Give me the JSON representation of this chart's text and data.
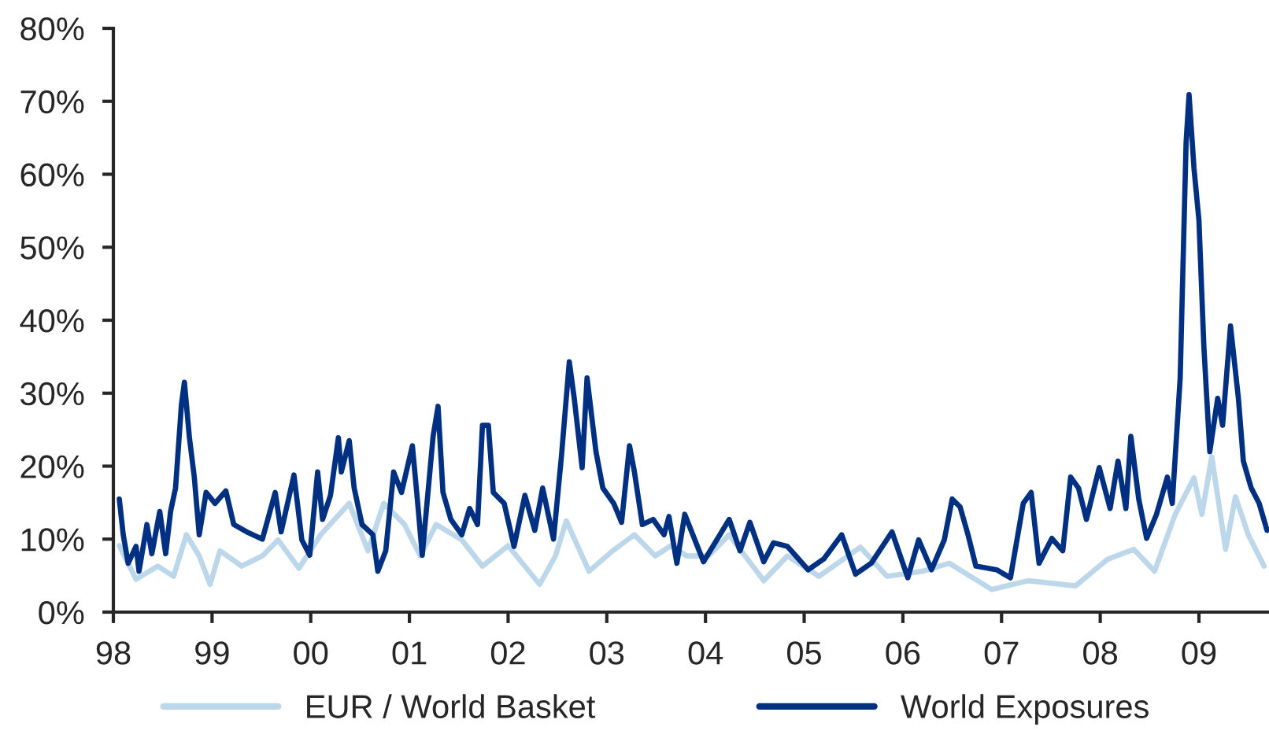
{
  "chart_data": {
    "type": "line",
    "xlim": [
      1998,
      2009.71
    ],
    "xticks": [
      {
        "value": 1998,
        "label": "98"
      },
      {
        "value": 1999,
        "label": "99"
      },
      {
        "value": 2000,
        "label": "00"
      },
      {
        "value": 2001,
        "label": "01"
      },
      {
        "value": 2002,
        "label": "02"
      },
      {
        "value": 2003,
        "label": "03"
      },
      {
        "value": 2004,
        "label": "04"
      },
      {
        "value": 2005,
        "label": "05"
      },
      {
        "value": 2006,
        "label": "06"
      },
      {
        "value": 2007,
        "label": "07"
      },
      {
        "value": 2008,
        "label": "08"
      },
      {
        "value": 2009,
        "label": "09"
      }
    ],
    "ylim": [
      0,
      80
    ],
    "yticks": [
      {
        "value": 0,
        "label": "0%"
      },
      {
        "value": 10,
        "label": "10%"
      },
      {
        "value": 20,
        "label": "20%"
      },
      {
        "value": 30,
        "label": "30%"
      },
      {
        "value": 40,
        "label": "40%"
      },
      {
        "value": 50,
        "label": "50%"
      },
      {
        "value": 60,
        "label": "60%"
      },
      {
        "value": 70,
        "label": "70%"
      },
      {
        "value": 80,
        "label": "80%"
      }
    ],
    "grid": false,
    "legend": "bottom",
    "marker": "none",
    "line_style": "solid",
    "series": [
      {
        "name": "EUR / World Basket",
        "color": "#bcd7ea",
        "x": [
          1998.06,
          1998.23,
          1998.45,
          1998.61,
          1998.74,
          1998.87,
          1998.98,
          1999.08,
          1999.3,
          1999.51,
          1999.67,
          1999.88,
          2000.1,
          2000.39,
          2000.58,
          2000.74,
          2000.95,
          2001.11,
          2001.27,
          2001.53,
          2001.74,
          2002.0,
          2002.32,
          2002.48,
          2002.59,
          2002.82,
          2003.06,
          2003.28,
          2003.49,
          2003.65,
          2003.81,
          2004.03,
          2004.24,
          2004.59,
          2004.83,
          2005.15,
          2005.57,
          2005.84,
          2006.2,
          2006.47,
          2006.9,
          2007.27,
          2007.75,
          2008.07,
          2008.34,
          2008.55,
          2008.76,
          2008.95,
          2009.03,
          2009.13,
          2009.27,
          2009.37,
          2009.5,
          2009.66
        ],
        "values": [
          9.1,
          4.5,
          6.3,
          4.9,
          10.6,
          7.7,
          3.8,
          8.4,
          6.3,
          7.7,
          9.9,
          6.0,
          10.6,
          14.9,
          8.4,
          14.9,
          12.0,
          7.7,
          12.0,
          9.9,
          6.3,
          9.1,
          3.8,
          7.7,
          12.5,
          5.6,
          8.4,
          10.6,
          7.7,
          9.1,
          7.7,
          7.7,
          10.6,
          4.3,
          7.7,
          4.9,
          8.9,
          4.9,
          5.6,
          6.7,
          3.1,
          4.3,
          3.6,
          7.2,
          8.6,
          5.6,
          13.4,
          18.4,
          13.4,
          21.3,
          8.6,
          15.8,
          10.6,
          6.3
        ]
      },
      {
        "name": "World Exposures",
        "color": "#003082",
        "x": [
          1998.06,
          1998.1,
          1998.15,
          1998.23,
          1998.26,
          1998.34,
          1998.39,
          1998.47,
          1998.53,
          1998.58,
          1998.63,
          1998.69,
          1998.72,
          1998.77,
          1998.82,
          1998.87,
          1998.94,
          1999.03,
          1999.14,
          1999.22,
          1999.35,
          1999.51,
          1999.64,
          1999.7,
          1999.83,
          1999.91,
          1999.99,
          2000.07,
          2000.12,
          2000.2,
          2000.28,
          2000.31,
          2000.39,
          2000.44,
          2000.52,
          2000.63,
          2000.68,
          2000.76,
          2000.84,
          2000.92,
          2001.03,
          2001.08,
          2001.13,
          2001.24,
          2001.29,
          2001.34,
          2001.42,
          2001.53,
          2001.61,
          2001.69,
          2001.74,
          2001.8,
          2001.85,
          2001.96,
          2002.06,
          2002.17,
          2002.27,
          2002.35,
          2002.46,
          2002.54,
          2002.62,
          2002.67,
          2002.75,
          2002.8,
          2002.89,
          2002.96,
          2003.07,
          2003.15,
          2003.23,
          2003.28,
          2003.36,
          2003.47,
          2003.58,
          2003.63,
          2003.71,
          2003.79,
          2003.98,
          2004.24,
          2004.35,
          2004.45,
          2004.59,
          2004.69,
          2004.83,
          2005.04,
          2005.2,
          2005.38,
          2005.52,
          2005.68,
          2005.89,
          2006.05,
          2006.16,
          2006.29,
          2006.42,
          2006.5,
          2006.58,
          2006.66,
          2006.74,
          2006.95,
          2007.09,
          2007.22,
          2007.3,
          2007.38,
          2007.51,
          2007.62,
          2007.7,
          2007.78,
          2007.86,
          2007.99,
          2008.1,
          2008.18,
          2008.26,
          2008.31,
          2008.39,
          2008.47,
          2008.57,
          2008.68,
          2008.73,
          2008.81,
          2008.87,
          2008.9,
          2008.95,
          2009.0,
          2009.05,
          2009.11,
          2009.19,
          2009.24,
          2009.32,
          2009.4,
          2009.45,
          2009.53,
          2009.61,
          2009.69
        ],
        "values": [
          15.5,
          10.6,
          6.7,
          9.0,
          5.6,
          12.0,
          8.0,
          13.8,
          8.0,
          13.8,
          17.0,
          28.5,
          31.5,
          24.0,
          18.5,
          10.6,
          16.4,
          14.9,
          16.6,
          12.0,
          11.0,
          10.0,
          16.4,
          11.0,
          18.8,
          9.9,
          7.8,
          19.2,
          12.7,
          16.0,
          23.9,
          19.2,
          23.5,
          17.0,
          12.0,
          10.6,
          5.6,
          8.4,
          19.2,
          16.4,
          22.8,
          15.5,
          7.8,
          24.1,
          28.2,
          16.4,
          12.7,
          10.6,
          14.2,
          12.0,
          25.6,
          25.6,
          16.4,
          14.9,
          9.0,
          16.0,
          11.2,
          17.0,
          10.0,
          21.3,
          34.3,
          29.3,
          19.8,
          32.1,
          22.0,
          17.0,
          14.9,
          12.3,
          22.8,
          19.2,
          12.0,
          12.7,
          10.6,
          13.1,
          6.7,
          13.4,
          6.9,
          12.7,
          8.4,
          12.3,
          6.9,
          9.5,
          9.0,
          5.8,
          7.3,
          10.6,
          5.2,
          6.7,
          11.0,
          4.7,
          9.9,
          5.8,
          9.9,
          15.5,
          14.4,
          10.6,
          6.3,
          5.8,
          4.7,
          14.9,
          16.4,
          6.7,
          10.1,
          8.4,
          18.5,
          17.0,
          12.7,
          19.8,
          14.2,
          20.7,
          14.2,
          24.1,
          15.5,
          10.1,
          13.4,
          18.5,
          14.9,
          32.1,
          64.4,
          70.9,
          60.8,
          53.7,
          36.4,
          22.0,
          29.3,
          25.6,
          39.2,
          29.3,
          20.7,
          17.0,
          14.9,
          11.2
        ]
      }
    ]
  }
}
